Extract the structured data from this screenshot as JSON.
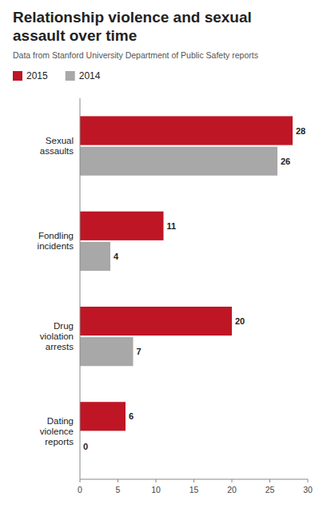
{
  "chart_data": {
    "type": "bar",
    "orientation": "horizontal",
    "title": "Relationship violence and sexual\nassault over time",
    "subtitle": "Data from Stanford University Department of Public Safety reports",
    "categories": [
      "Sexual\nassaults",
      "Fondling\nincidents",
      "Drug\nviolation\narrests",
      "Dating\nviolence\nreports"
    ],
    "series": [
      {
        "name": "2015",
        "color": "#be1625",
        "values": [
          28,
          11,
          20,
          6
        ]
      },
      {
        "name": "2014",
        "color": "#a8a8a8",
        "values": [
          26,
          4,
          7,
          0
        ]
      }
    ],
    "xlim": [
      0,
      30
    ],
    "xticks": [
      0,
      5,
      10,
      15,
      20,
      25,
      30
    ],
    "grid": false,
    "legend": "top",
    "data_labels": true
  }
}
